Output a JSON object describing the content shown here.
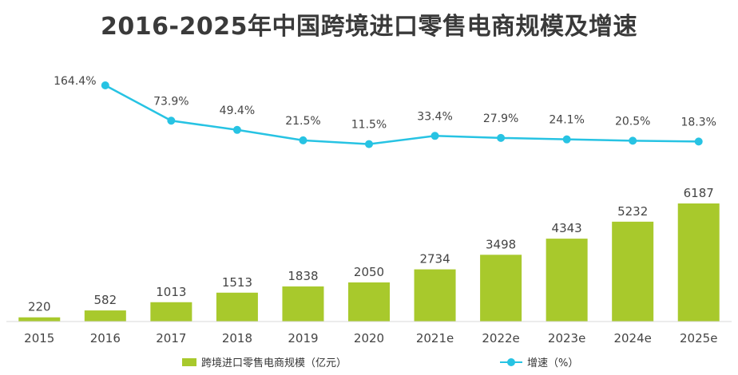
{
  "title": "2016-2025年中国跨境进口零售电商规模及增速",
  "colors": {
    "bar": "#a8c92c",
    "line": "#27c3e3",
    "text": "#444444",
    "title": "#3a3a3a"
  },
  "legend": {
    "bar_label": "跨境进口零售电商规模（亿元）",
    "line_label": "增速（%）"
  },
  "chart_data": {
    "type": "bar",
    "title": "2016-2025年中国跨境进口零售电商规模及增速",
    "categories": [
      "2015",
      "2016",
      "2017",
      "2018",
      "2019",
      "2020",
      "2021e",
      "2022e",
      "2023e",
      "2024e",
      "2025e"
    ],
    "series": [
      {
        "name": "跨境进口零售电商规模（亿元）",
        "type": "bar",
        "values": [
          220,
          582,
          1013,
          1513,
          1838,
          2050,
          2734,
          3498,
          4343,
          5232,
          6187
        ],
        "labels": [
          "220",
          "582",
          "1013",
          "1513",
          "1838",
          "2050",
          "2734",
          "3498",
          "4343",
          "5232",
          "6187"
        ]
      },
      {
        "name": "增速（%）",
        "type": "line",
        "values": [
          null,
          164.4,
          73.9,
          49.4,
          21.5,
          11.5,
          33.4,
          27.9,
          24.1,
          20.5,
          18.3
        ],
        "labels": [
          "",
          "164.4%",
          "73.9%",
          "49.4%",
          "21.5%",
          "11.5%",
          "33.4%",
          "27.9%",
          "24.1%",
          "20.5%",
          "18.3%"
        ]
      }
    ],
    "legend_position": "bottom",
    "grid": false
  }
}
